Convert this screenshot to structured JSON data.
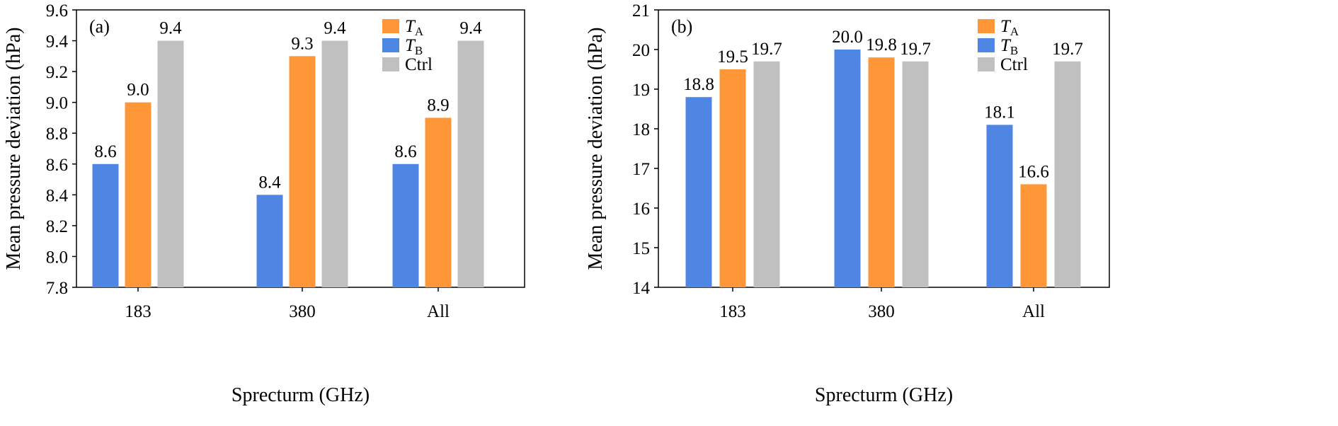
{
  "chart_data": [
    {
      "type": "bar",
      "panel_label": "(a)",
      "categories": [
        "183",
        "380",
        "All"
      ],
      "series": [
        {
          "name": "T",
          "subscript": "B",
          "color": "#4F86E4",
          "values": [
            8.6,
            8.4,
            8.6
          ]
        },
        {
          "name": "T",
          "subscript": "A",
          "color": "#FF9638",
          "values": [
            9.0,
            9.3,
            8.9
          ]
        },
        {
          "name": "Ctrl",
          "subscript": "",
          "color": "#C0C0C0",
          "values": [
            9.4,
            9.4,
            9.4
          ]
        }
      ],
      "legend_order": [
        1,
        0,
        2
      ],
      "data_labels": [
        [
          "8.6",
          "9.0",
          "9.4"
        ],
        [
          "8.4",
          "9.3",
          "9.4"
        ],
        [
          "8.6",
          "8.9",
          "9.4"
        ]
      ],
      "yticks": [
        "7.8",
        "8.0",
        "8.2",
        "8.4",
        "8.6",
        "8.8",
        "9.0",
        "9.2",
        "9.4",
        "9.6"
      ],
      "ylim": [
        7.8,
        9.6
      ],
      "xlabel": "Sprecturm (GHz)",
      "ylabel": "Mean pressure deviation (hPa)",
      "legend_position": "top-right",
      "grid": false
    },
    {
      "type": "bar",
      "panel_label": "(b)",
      "categories": [
        "183",
        "380",
        "All"
      ],
      "series": [
        {
          "name": "T",
          "subscript": "B",
          "color": "#4F86E4",
          "values": [
            18.8,
            20.0,
            18.1
          ]
        },
        {
          "name": "T",
          "subscript": "A",
          "color": "#FF9638",
          "values": [
            19.5,
            19.8,
            16.6
          ]
        },
        {
          "name": "Ctrl",
          "subscript": "",
          "color": "#C0C0C0",
          "values": [
            19.7,
            19.7,
            19.7
          ]
        }
      ],
      "legend_order": [
        1,
        0,
        2
      ],
      "data_labels": [
        [
          "18.8",
          "19.5",
          "19.7"
        ],
        [
          "20.0",
          "19.8",
          "19.7"
        ],
        [
          "18.1",
          "16.6",
          "19.7"
        ]
      ],
      "yticks": [
        "14",
        "15",
        "16",
        "17",
        "18",
        "19",
        "20",
        "21"
      ],
      "ylim": [
        14,
        21
      ],
      "xlabel": "Sprecturm (GHz)",
      "ylabel": "Mean pressure deviation (hPa)",
      "legend_position": "top-right",
      "grid": false
    }
  ]
}
